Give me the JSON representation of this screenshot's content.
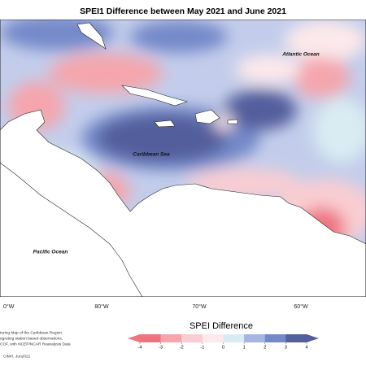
{
  "title": "SPEI1 Difference between May 2021 and June 2021",
  "map": {
    "labels": [
      "Atlantic Ocean",
      "Caribbean Sea",
      "Pacific Ocean"
    ],
    "longitudes": [
      "0°W",
      "80°W",
      "70°W",
      "60°W"
    ]
  },
  "colorbar": {
    "title": "SPEI Difference",
    "ticks": [
      -4,
      -3,
      -2,
      -1,
      0,
      1,
      2,
      3,
      4
    ],
    "colors": [
      "#ee7480",
      "#f5a6ad",
      "#f9cdd2",
      "#fce9eb",
      "#d9ecf2",
      "#a6b6e2",
      "#7489c9",
      "#525f9c"
    ]
  },
  "credits": [
    "toring Map of the Caribbean Region.",
    "egrating station based observations,",
    "COF, with NCEP/NCAR Reanalysis Data",
    "CIMH, Jun2021"
  ]
}
